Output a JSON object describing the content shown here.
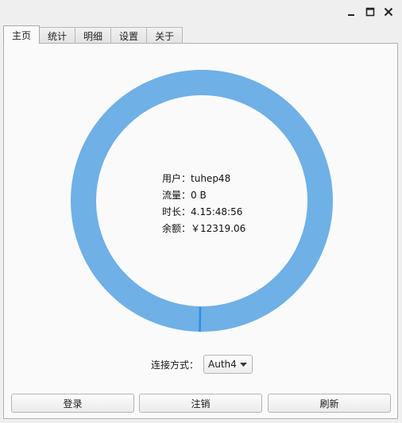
{
  "window": {
    "controls": [
      "minimize-icon",
      "maximize-icon",
      "close-icon"
    ]
  },
  "tabs": [
    {
      "label": "主页",
      "active": true
    },
    {
      "label": "统计",
      "active": false
    },
    {
      "label": "明细",
      "active": false
    },
    {
      "label": "设置",
      "active": false
    },
    {
      "label": "关于",
      "active": false
    }
  ],
  "status": {
    "user_label": "用户：",
    "user_value": "tuhep48",
    "traffic_label": "流量：",
    "traffic_value": "0 B",
    "duration_label": "时长：",
    "duration_value": "4.15:48:56",
    "balance_label": "余额：",
    "balance_value": "￥12319.06"
  },
  "ring": {
    "color": "#6fb0e6",
    "marker_color": "#2c8ee0"
  },
  "connection": {
    "label": "连接方式：",
    "selected": "Auth4"
  },
  "buttons": {
    "login": "登录",
    "logout": "注销",
    "refresh": "刷新"
  }
}
